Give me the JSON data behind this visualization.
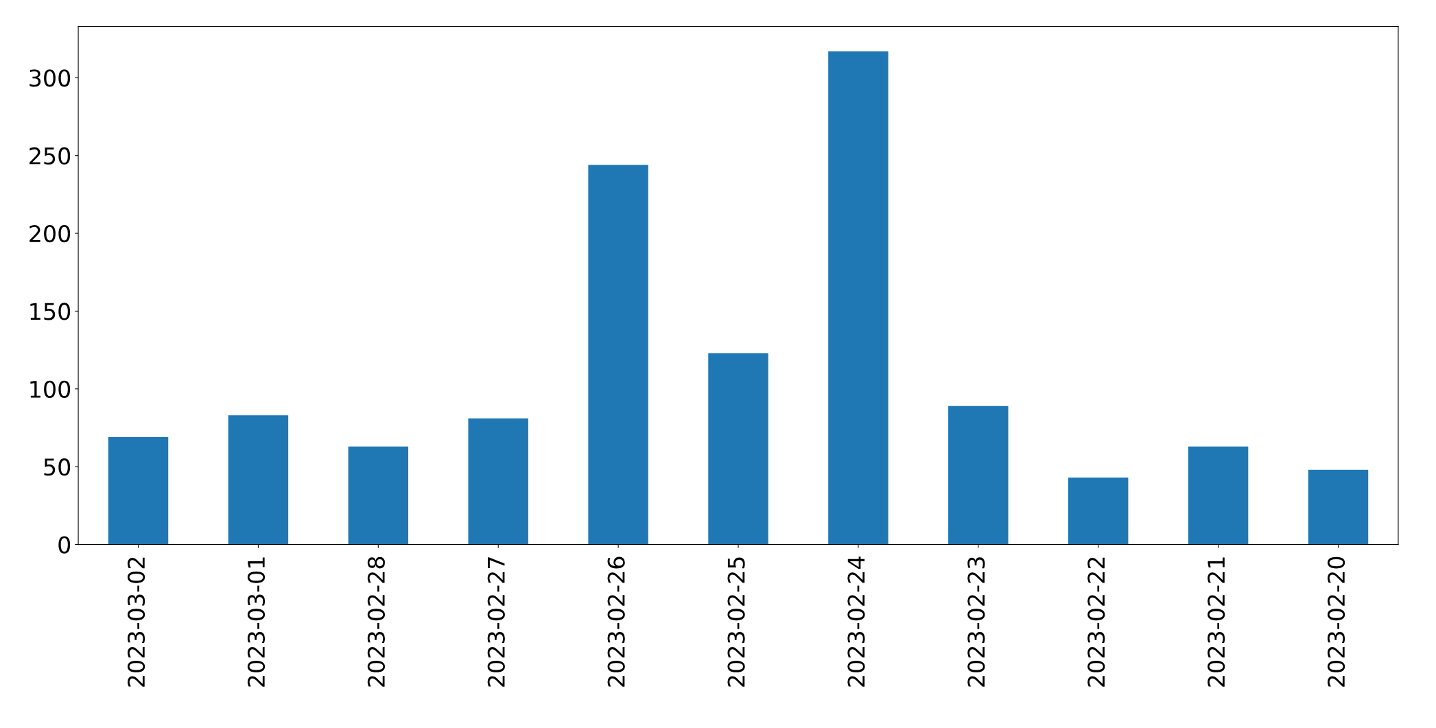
{
  "chart_data": {
    "type": "bar",
    "categories": [
      "2023-03-02",
      "2023-03-01",
      "2023-02-28",
      "2023-02-27",
      "2023-02-26",
      "2023-02-25",
      "2023-02-24",
      "2023-02-23",
      "2023-02-22",
      "2023-02-21",
      "2023-02-20"
    ],
    "values": [
      69,
      83,
      63,
      81,
      244,
      123,
      317,
      89,
      43,
      63,
      48
    ],
    "color": "#1f77b4",
    "ylim": [
      0,
      333
    ],
    "yticks": [
      0,
      50,
      100,
      150,
      200,
      250,
      300
    ],
    "grid": false
  }
}
